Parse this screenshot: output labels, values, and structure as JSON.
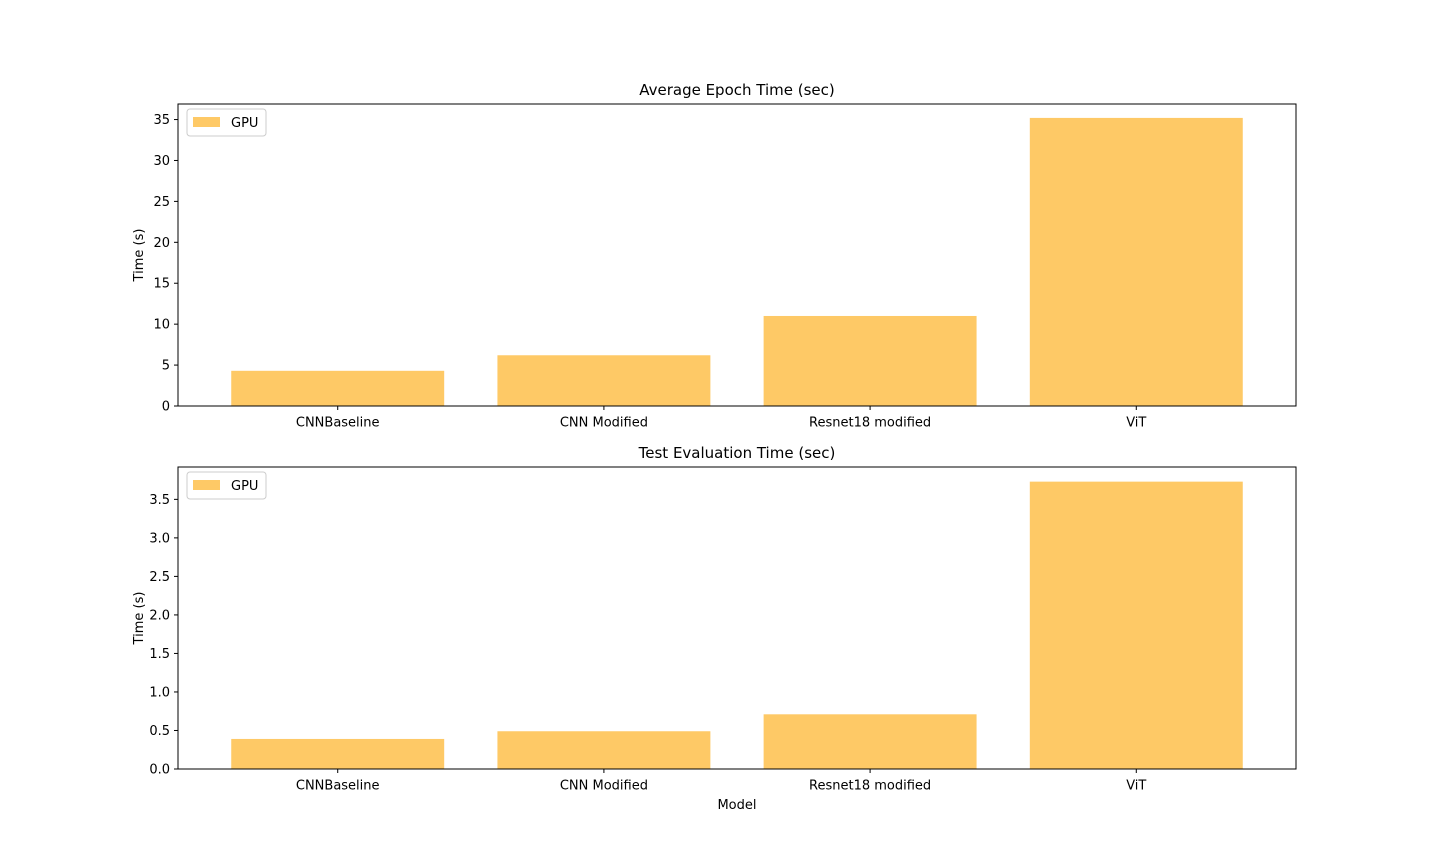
{
  "chart_data": [
    {
      "type": "bar",
      "title": "Average Epoch Time (sec)",
      "categories": [
        "CNNBaseline",
        "CNN Modified",
        "Resnet18 modified",
        "ViT"
      ],
      "series": [
        {
          "name": "GPU",
          "values": [
            4.3,
            6.2,
            11.0,
            35.2
          ],
          "color": "#fec966"
        }
      ],
      "xlabel": "",
      "ylabel": "Time (s)",
      "ylim": [
        0,
        36.9
      ],
      "yticks": [
        0,
        5,
        10,
        15,
        20,
        25,
        30,
        35
      ],
      "ytick_labels": [
        "0",
        "5",
        "10",
        "15",
        "20",
        "25",
        "30",
        "35"
      ],
      "grid": false,
      "legend": "top-left"
    },
    {
      "type": "bar",
      "title": "Test Evaluation Time (sec)",
      "categories": [
        "CNNBaseline",
        "CNN Modified",
        "Resnet18 modified",
        "ViT"
      ],
      "series": [
        {
          "name": "GPU",
          "values": [
            0.39,
            0.49,
            0.71,
            3.73
          ],
          "color": "#fec966"
        }
      ],
      "xlabel": "Model",
      "ylabel": "Time (s)",
      "ylim": [
        0,
        3.92
      ],
      "yticks": [
        0,
        0.5,
        1.0,
        1.5,
        2.0,
        2.5,
        3.0,
        3.5
      ],
      "ytick_labels": [
        "0.0",
        "0.5",
        "1.0",
        "1.5",
        "2.0",
        "2.5",
        "3.0",
        "3.5"
      ],
      "grid": false,
      "legend": "top-left"
    }
  ]
}
